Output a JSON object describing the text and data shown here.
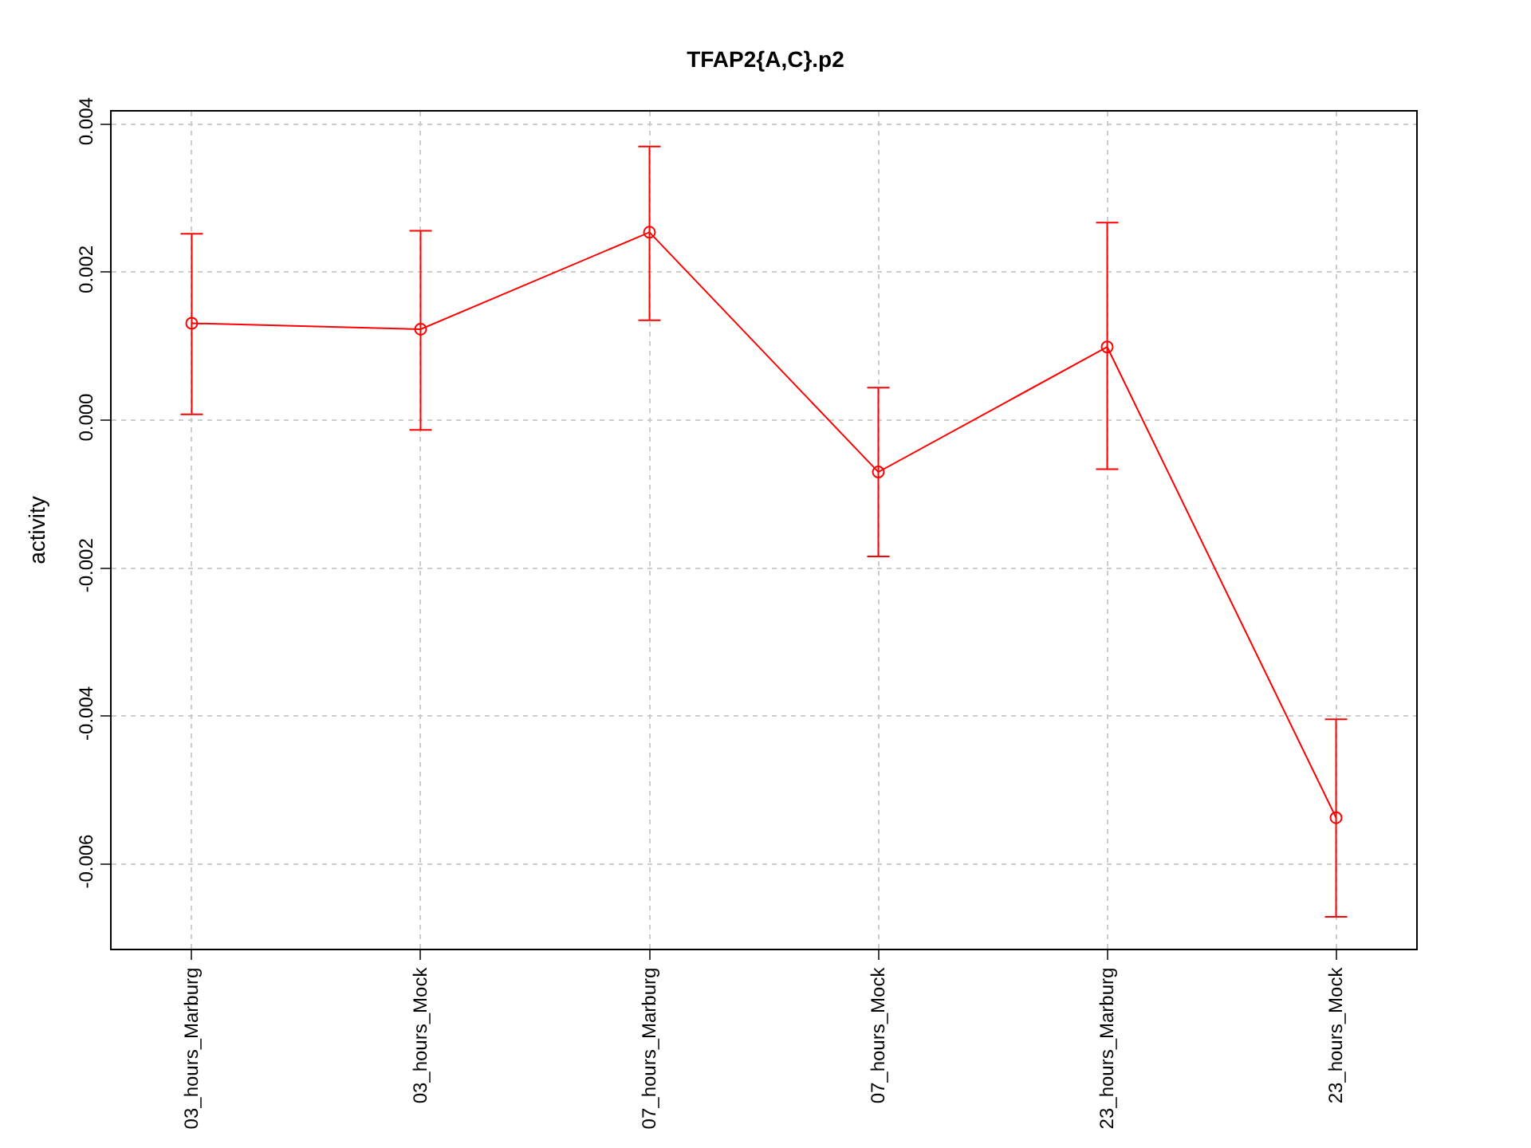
{
  "chart_data": {
    "type": "line",
    "title": "TFAP2{A,C}.p2",
    "ylabel": "activity",
    "categories": [
      "03_hours_Marburg",
      "03_hours_Mock",
      "07_hours_Marburg",
      "07_hours_Mock",
      "23_hours_Marburg",
      "23_hours_Mock"
    ],
    "series": [
      {
        "color": "#ff0000",
        "values": [
          0.00131,
          0.00123,
          0.00254,
          -0.0007,
          0.00099,
          -0.00537
        ],
        "errors": [
          [
            8e-05,
            0.00252
          ],
          [
            -0.00013,
            0.00256
          ],
          [
            0.00135,
            0.0037
          ],
          [
            -0.00184,
            0.00044
          ],
          [
            -0.00066,
            0.00267
          ],
          [
            -0.00671,
            -0.00404
          ]
        ]
      }
    ],
    "ylim": [
      -0.00714,
      0.00417
    ],
    "yticks": [
      {
        "value": -0.006,
        "label": "-0.006"
      },
      {
        "value": -0.004,
        "label": "-0.004"
      },
      {
        "value": -0.002,
        "label": "-0.002"
      },
      {
        "value": 0,
        "label": "0.000"
      },
      {
        "value": 0.002,
        "label": "0.002"
      },
      {
        "value": 0.004,
        "label": "0.004"
      }
    ],
    "grid": true,
    "marker": "circle",
    "line_style": "solid"
  }
}
